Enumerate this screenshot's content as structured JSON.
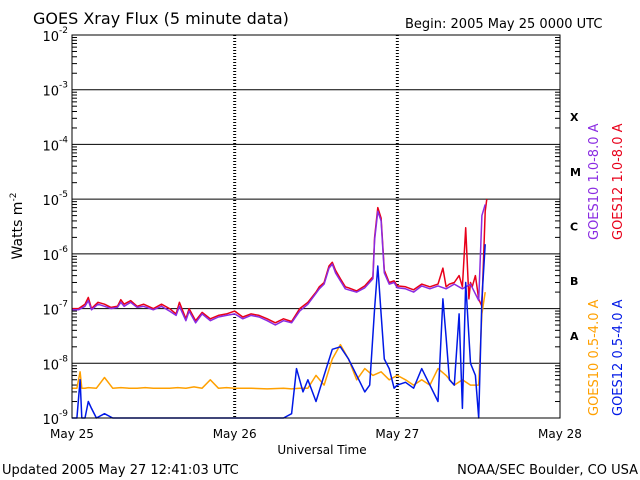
{
  "header": {
    "title": "GOES Xray Flux (5 minute data)",
    "begin": "Begin:  2005 May 25 0000 UTC"
  },
  "footer": {
    "updated": "Updated 2005 May 27 12:41:03 UTC",
    "credit": "NOAA/SEC Boulder, CO USA"
  },
  "chart_data": {
    "type": "line",
    "title": "GOES Xray Flux (5 minute data)",
    "xlabel": "Universal Time",
    "ylabel_text": "Watts m",
    "ylabel_exp": "-2",
    "yscale": "log",
    "ylim": [
      1e-09,
      0.01
    ],
    "x_unit": "days since 2005 May 25 00:00 UTC",
    "xlim": [
      0,
      3
    ],
    "x_ticks": [
      {
        "label": "May 25",
        "day": 0
      },
      {
        "label": "May 26",
        "day": 1
      },
      {
        "label": "May 27",
        "day": 2
      },
      {
        "label": "May 28",
        "day": 3
      }
    ],
    "y_ticks": [
      {
        "base": "10",
        "exp": "-2",
        "decade": -2
      },
      {
        "base": "10",
        "exp": "-3",
        "decade": -3
      },
      {
        "base": "10",
        "exp": "-4",
        "decade": -4
      },
      {
        "base": "10",
        "exp": "-5",
        "decade": -5
      },
      {
        "base": "10",
        "exp": "-6",
        "decade": -6
      },
      {
        "base": "10",
        "exp": "-7",
        "decade": -7
      },
      {
        "base": "10",
        "exp": "-8",
        "decade": -8
      },
      {
        "base": "10",
        "exp": "-9",
        "decade": -9
      }
    ],
    "flare_classes": [
      {
        "label": "X",
        "decade": -3.5
      },
      {
        "label": "M",
        "decade": -4.5
      },
      {
        "label": "C",
        "decade": -5.5
      },
      {
        "label": "B",
        "decade": -6.5
      },
      {
        "label": "A",
        "decade": -7.5
      }
    ],
    "legend_long": [
      {
        "name": "GOES10 1.0-8.0 A",
        "color": "#8a2be2"
      },
      {
        "name": "GOES12 1.0-8.0 A",
        "color": "#e8001a"
      }
    ],
    "legend_short": [
      {
        "name": "GOES10 0.5-4.0 A",
        "color": "#ffa000"
      },
      {
        "name": "GOES12 0.5-4.0 A",
        "color": "#0018e6"
      }
    ],
    "series": [
      {
        "name": "GOES12 1.0-8.0 A",
        "color": "#e8001a",
        "x": [
          0,
          0.04,
          0.08,
          0.1,
          0.12,
          0.16,
          0.2,
          0.24,
          0.28,
          0.3,
          0.32,
          0.36,
          0.4,
          0.44,
          0.5,
          0.55,
          0.6,
          0.64,
          0.66,
          0.7,
          0.72,
          0.76,
          0.8,
          0.85,
          0.9,
          0.95,
          1.0,
          1.05,
          1.1,
          1.15,
          1.2,
          1.25,
          1.3,
          1.35,
          1.4,
          1.45,
          1.5,
          1.52,
          1.55,
          1.58,
          1.6,
          1.62,
          1.65,
          1.68,
          1.7,
          1.75,
          1.8,
          1.85,
          1.86,
          1.88,
          1.9,
          1.92,
          1.95,
          1.98,
          2.0,
          2.05,
          2.1,
          2.15,
          2.2,
          2.25,
          2.28,
          2.3,
          2.32,
          2.35,
          2.38,
          2.4,
          2.42,
          2.44,
          2.45,
          2.46,
          2.48,
          2.5,
          2.52,
          2.54,
          2.55
        ],
        "y": [
          1e-07,
          1e-07,
          1.2e-07,
          1.6e-07,
          1e-07,
          1.3e-07,
          1.2e-07,
          1.05e-07,
          1.1e-07,
          1.45e-07,
          1.2e-07,
          1.4e-07,
          1.1e-07,
          1.2e-07,
          1e-07,
          1.2e-07,
          1e-07,
          8e-08,
          1.3e-07,
          6.5e-08,
          1e-07,
          6e-08,
          8.5e-08,
          6.5e-08,
          7.5e-08,
          8e-08,
          9e-08,
          7e-08,
          8e-08,
          7.5e-08,
          6.5e-08,
          5.5e-08,
          6.5e-08,
          5.8e-08,
          1e-07,
          1.3e-07,
          2e-07,
          2.5e-07,
          3e-07,
          6e-07,
          7e-07,
          5e-07,
          3.5e-07,
          2.5e-07,
          2.4e-07,
          2.1e-07,
          2.6e-07,
          3.8e-07,
          2e-06,
          7e-06,
          4.5e-06,
          5e-07,
          3e-07,
          3.2e-07,
          2.6e-07,
          2.5e-07,
          2.2e-07,
          2.8e-07,
          2.5e-07,
          2.8e-07,
          5.5e-07,
          2.5e-07,
          2.8e-07,
          3e-07,
          4e-07,
          2.5e-07,
          3e-06,
          1.5e-07,
          3e-07,
          2.5e-07,
          4e-07,
          1.5e-07,
          1.1e-07,
          6e-06,
          1e-05
        ]
      },
      {
        "name": "GOES10 1.0-8.0 A",
        "color": "#8a2be2",
        "x": [
          0,
          0.04,
          0.08,
          0.1,
          0.12,
          0.16,
          0.2,
          0.24,
          0.28,
          0.3,
          0.32,
          0.36,
          0.4,
          0.44,
          0.5,
          0.55,
          0.6,
          0.64,
          0.66,
          0.7,
          0.72,
          0.76,
          0.8,
          0.85,
          0.9,
          0.95,
          1.0,
          1.05,
          1.1,
          1.15,
          1.2,
          1.25,
          1.3,
          1.35,
          1.4,
          1.45,
          1.5,
          1.52,
          1.55,
          1.58,
          1.6,
          1.62,
          1.65,
          1.68,
          1.7,
          1.75,
          1.8,
          1.85,
          1.86,
          1.88,
          1.9,
          1.92,
          1.95,
          1.98,
          2.0,
          2.05,
          2.1,
          2.15,
          2.2,
          2.25,
          2.3,
          2.35,
          2.4,
          2.45,
          2.5,
          2.52,
          2.54
        ],
        "y": [
          9.5e-08,
          9.5e-08,
          1.1e-07,
          1.4e-07,
          9.5e-08,
          1.2e-07,
          1.1e-07,
          1e-07,
          1.05e-07,
          1.3e-07,
          1.1e-07,
          1.3e-07,
          1.05e-07,
          1.1e-07,
          9.5e-08,
          1.1e-07,
          9e-08,
          7.5e-08,
          1.1e-07,
          6e-08,
          9e-08,
          5.5e-08,
          8e-08,
          6e-08,
          7e-08,
          7.5e-08,
          8e-08,
          6.5e-08,
          7.5e-08,
          7e-08,
          6e-08,
          5e-08,
          6e-08,
          5.5e-08,
          9e-08,
          1.2e-07,
          1.9e-07,
          2.3e-07,
          2.8e-07,
          5.5e-07,
          6.5e-07,
          4.5e-07,
          3.2e-07,
          2.3e-07,
          2.2e-07,
          2e-07,
          2.4e-07,
          3.5e-07,
          1.8e-06,
          6e-06,
          4e-06,
          4.5e-07,
          2.8e-07,
          3e-07,
          2.4e-07,
          2.3e-07,
          2e-07,
          2.6e-07,
          2.3e-07,
          2.6e-07,
          2.3e-07,
          2.8e-07,
          2.3e-07,
          2.8e-07,
          1.4e-07,
          5e-06,
          8e-06
        ]
      },
      {
        "name": "GOES10 0.5-4.0 A",
        "color": "#ffa000",
        "x": [
          0,
          0.03,
          0.05,
          0.06,
          0.08,
          0.1,
          0.15,
          0.2,
          0.25,
          0.3,
          0.35,
          0.4,
          0.45,
          0.5,
          0.55,
          0.6,
          0.65,
          0.7,
          0.75,
          0.8,
          0.85,
          0.9,
          0.95,
          1.0,
          1.1,
          1.2,
          1.3,
          1.35,
          1.4,
          1.45,
          1.5,
          1.55,
          1.6,
          1.65,
          1.7,
          1.75,
          1.8,
          1.85,
          1.9,
          1.95,
          2.0,
          2.05,
          2.1,
          2.15,
          2.2,
          2.25,
          2.3,
          2.35,
          2.4,
          2.45,
          2.5,
          2.52,
          2.54
        ],
        "y": [
          3.5e-09,
          3.5e-09,
          7e-09,
          3.5e-09,
          3.5e-09,
          3.6e-09,
          3.5e-09,
          5.5e-09,
          3.5e-09,
          3.6e-09,
          3.5e-09,
          3.5e-09,
          3.6e-09,
          3.5e-09,
          3.5e-09,
          3.5e-09,
          3.6e-09,
          3.5e-09,
          3.7e-09,
          3.5e-09,
          5e-09,
          3.5e-09,
          3.6e-09,
          3.5e-09,
          3.5e-09,
          3.4e-09,
          3.5e-09,
          3.4e-09,
          3.5e-09,
          3.5e-09,
          6e-09,
          4e-09,
          1.2e-08,
          2.2e-08,
          1.2e-08,
          5e-09,
          8e-09,
          6e-09,
          7e-09,
          5e-09,
          6e-09,
          5e-09,
          4e-09,
          5e-09,
          4e-09,
          8e-09,
          6e-09,
          4e-09,
          5e-09,
          4e-09,
          4e-09,
          8e-08,
          2e-07
        ]
      },
      {
        "name": "GOES12 0.5-4.0 A",
        "color": "#0018e6",
        "x": [
          0,
          0.03,
          0.05,
          0.06,
          0.08,
          0.1,
          0.12,
          0.15,
          0.2,
          0.25,
          0.3,
          0.35,
          0.4,
          0.45,
          0.5,
          0.55,
          0.6,
          0.65,
          0.7,
          0.75,
          0.8,
          0.85,
          0.9,
          0.95,
          1.0,
          1.1,
          1.2,
          1.3,
          1.35,
          1.38,
          1.42,
          1.45,
          1.5,
          1.55,
          1.6,
          1.65,
          1.7,
          1.75,
          1.8,
          1.83,
          1.86,
          1.88,
          1.9,
          1.92,
          1.95,
          1.98,
          2.0,
          2.05,
          2.1,
          2.15,
          2.2,
          2.25,
          2.28,
          2.3,
          2.32,
          2.35,
          2.38,
          2.4,
          2.42,
          2.45,
          2.48,
          2.5,
          2.52,
          2.54
        ],
        "y": [
          1e-09,
          1e-09,
          5e-09,
          1e-09,
          1e-09,
          2e-09,
          1.5e-09,
          1e-09,
          1.2e-09,
          1e-09,
          1e-09,
          1e-09,
          1e-09,
          1e-09,
          1e-09,
          1e-09,
          1e-09,
          1e-09,
          1e-09,
          1e-09,
          1e-09,
          1e-09,
          1e-09,
          1e-09,
          1e-09,
          1e-09,
          1e-09,
          1e-09,
          1.2e-09,
          8e-09,
          3e-09,
          5e-09,
          2e-09,
          6e-09,
          1.8e-08,
          2e-08,
          1.2e-08,
          6e-09,
          3e-09,
          4e-09,
          1e-07,
          6e-07,
          8e-08,
          1.2e-08,
          8e-09,
          3.5e-09,
          4e-09,
          4.5e-09,
          3.5e-09,
          8e-09,
          4e-09,
          2e-09,
          1.5e-07,
          3e-08,
          5e-09,
          4e-09,
          8e-08,
          1.5e-09,
          3e-07,
          1e-08,
          6e-09,
          1e-09,
          1.5e-07,
          1.5e-06
        ]
      }
    ]
  }
}
